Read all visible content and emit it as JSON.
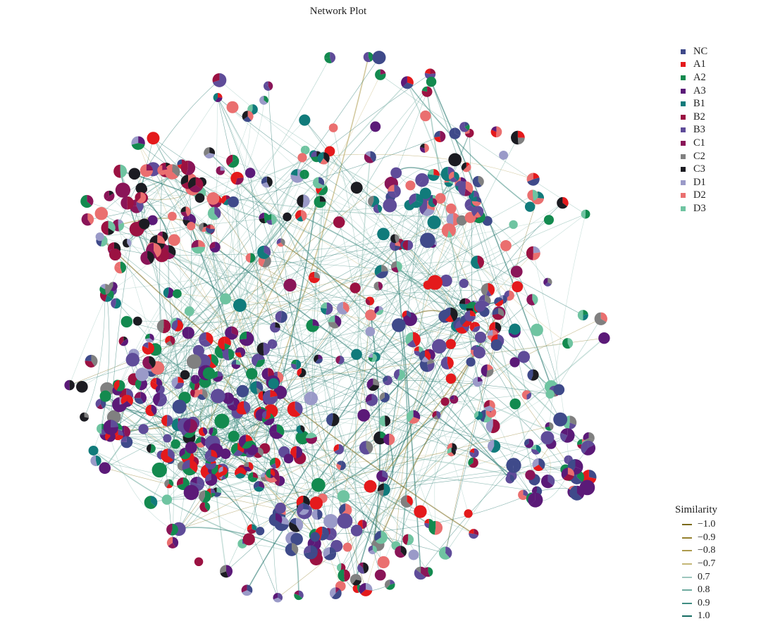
{
  "title": "Network Plot",
  "legend_groups": [
    {
      "label": "NC",
      "color": "#3f4a8a"
    },
    {
      "label": "A1",
      "color": "#e41a1c"
    },
    {
      "label": "A2",
      "color": "#138a4f"
    },
    {
      "label": "A3",
      "color": "#5b1a78"
    },
    {
      "label": "B1",
      "color": "#117b7b"
    },
    {
      "label": "B2",
      "color": "#9b1242"
    },
    {
      "label": "B3",
      "color": "#5f4c99"
    },
    {
      "label": "C1",
      "color": "#8a1558"
    },
    {
      "label": "C2",
      "color": "#808080"
    },
    {
      "label": "C3",
      "color": "#1c1c22"
    },
    {
      "label": "D1",
      "color": "#9a9ac8"
    },
    {
      "label": "D2",
      "color": "#ea6f6f"
    },
    {
      "label": "D3",
      "color": "#6fc4a1"
    }
  ],
  "legend_similarity": {
    "title": "Similarity",
    "items": [
      {
        "label": "−1.0",
        "color": "#7a6a1a"
      },
      {
        "label": "−0.9",
        "color": "#94812e"
      },
      {
        "label": "−0.8",
        "color": "#ad9a4d"
      },
      {
        "label": "−0.7",
        "color": "#c4b777"
      },
      {
        "label": "0.7",
        "color": "#9dc6be"
      },
      {
        "label": "0.8",
        "color": "#6fab9f"
      },
      {
        "label": "0.9",
        "color": "#3f8d82"
      },
      {
        "label": "1.0",
        "color": "#146b63"
      }
    ]
  }
}
